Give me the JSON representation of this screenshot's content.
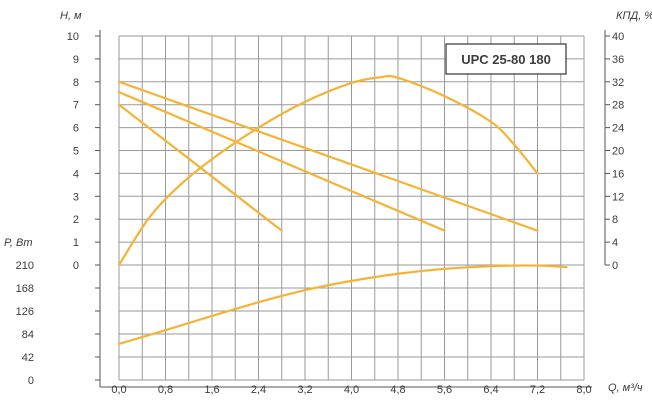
{
  "chart_data": {
    "type": "line",
    "title": "UPC 25-80 180",
    "line_color": "#f5b335",
    "x_axis": {
      "label": "Q, м³/ч",
      "range": [
        0,
        8.0
      ],
      "ticks": [
        "0,0",
        "0,8",
        "1,6",
        "2,4",
        "3,2",
        "4,0",
        "4,8",
        "5,6",
        "6,4",
        "7,2",
        "8,0"
      ]
    },
    "head_axis": {
      "label": "H, м",
      "range": [
        0,
        10
      ],
      "ticks": [
        "0",
        "1",
        "2",
        "3",
        "4",
        "5",
        "6",
        "7",
        "8",
        "9",
        "10"
      ]
    },
    "efficiency_axis": {
      "label": "КПД, %",
      "range": [
        0,
        40
      ],
      "ticks": [
        "0",
        "4",
        "8",
        "12",
        "16",
        "20",
        "24",
        "28",
        "32",
        "36",
        "40"
      ]
    },
    "power_axis": {
      "label": "P, Вт",
      "range": [
        0,
        210
      ],
      "ticks": [
        "0",
        "42",
        "84",
        "126",
        "168",
        "210"
      ]
    },
    "grid": true,
    "series": [
      {
        "kind": "head",
        "points": [
          [
            0,
            7.0
          ],
          [
            2.8,
            1.5
          ]
        ]
      },
      {
        "kind": "head",
        "points": [
          [
            0,
            7.55
          ],
          [
            5.6,
            1.5
          ]
        ]
      },
      {
        "kind": "head",
        "points": [
          [
            0,
            8.0
          ],
          [
            7.2,
            1.5
          ]
        ]
      },
      {
        "kind": "efficiency",
        "points": [
          [
            0,
            0
          ],
          [
            0.5,
            8
          ],
          [
            1.0,
            13.5
          ],
          [
            1.6,
            18.5
          ],
          [
            2.4,
            24
          ],
          [
            3.2,
            28.5
          ],
          [
            4.0,
            31.8
          ],
          [
            4.5,
            32.8
          ],
          [
            4.8,
            32.7
          ],
          [
            5.6,
            29.5
          ],
          [
            6.4,
            25
          ],
          [
            6.8,
            21
          ],
          [
            7.2,
            16
          ]
        ]
      },
      {
        "kind": "power",
        "points": [
          [
            0,
            66
          ],
          [
            0.8,
            91
          ],
          [
            1.6,
            117
          ],
          [
            2.4,
            142
          ],
          [
            3.2,
            164
          ],
          [
            4.0,
            181
          ],
          [
            4.8,
            194
          ],
          [
            5.6,
            203
          ],
          [
            6.4,
            208
          ],
          [
            7.2,
            209
          ],
          [
            7.7,
            206
          ]
        ]
      }
    ]
  }
}
